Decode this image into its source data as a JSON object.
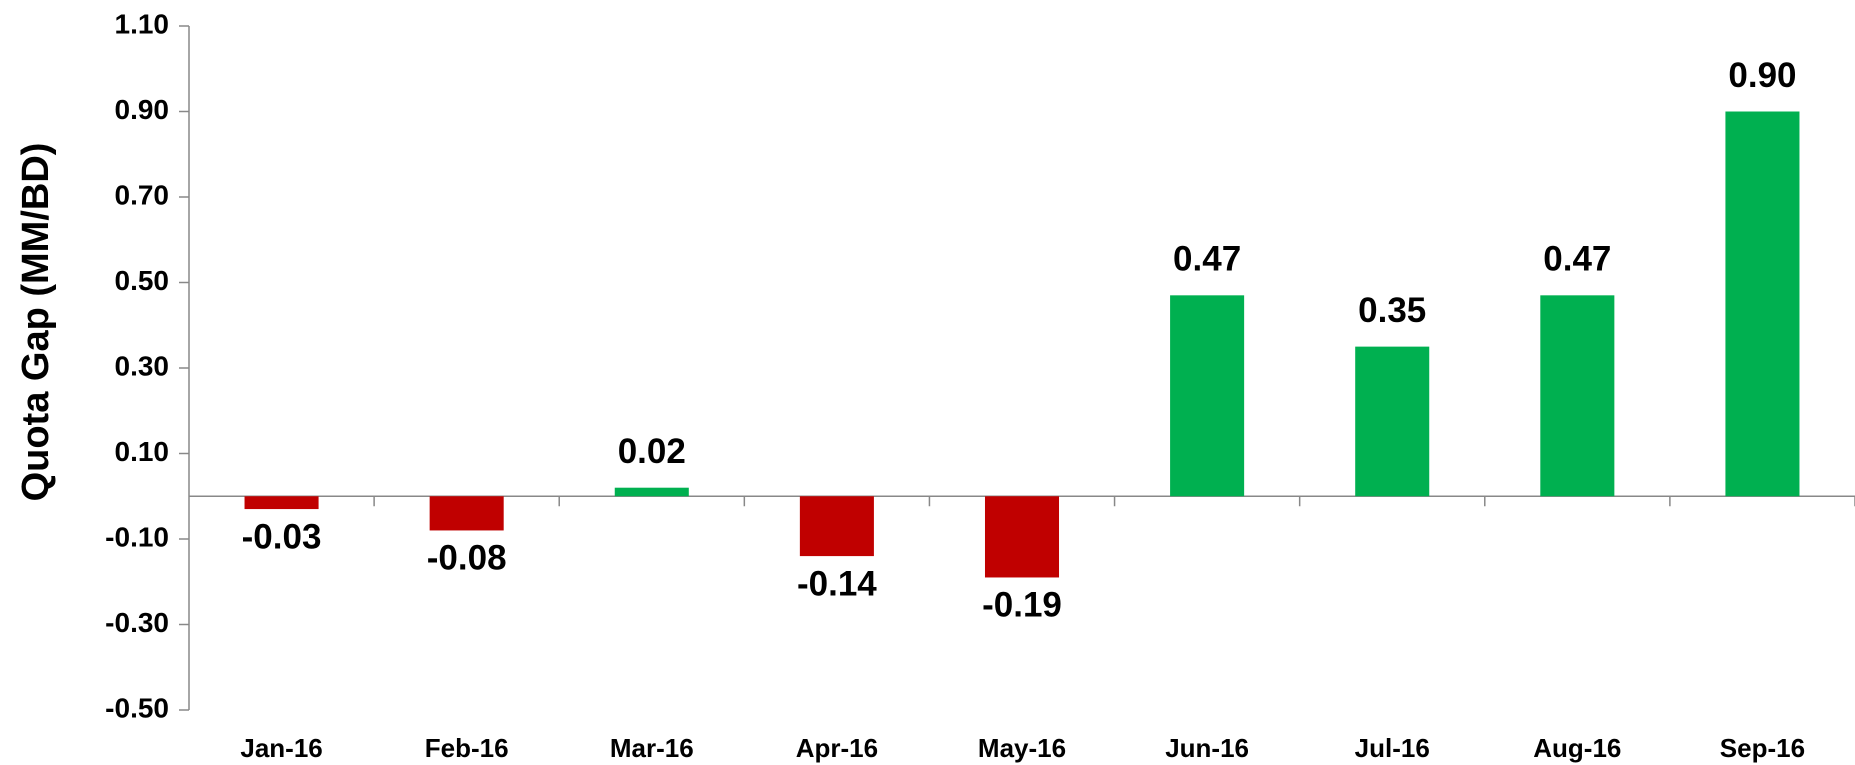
{
  "chart_data": {
    "type": "bar",
    "y_label": "Quota Gap (MM/BD)",
    "categories": [
      "Jan-16",
      "Feb-16",
      "Mar-16",
      "Apr-16",
      "May-16",
      "Jun-16",
      "Jul-16",
      "Aug-16",
      "Sep-16"
    ],
    "values": [
      -0.03,
      -0.08,
      0.02,
      -0.14,
      -0.19,
      0.47,
      0.35,
      0.47,
      0.9
    ],
    "value_labels": [
      "-0.03",
      "-0.08",
      "0.02",
      "-0.14",
      "-0.19",
      "0.47",
      "0.35",
      "0.47",
      "0.90"
    ],
    "colors": [
      "#c00000",
      "#c00000",
      "#00b050",
      "#c00000",
      "#c00000",
      "#00b050",
      "#00b050",
      "#00b050",
      "#00b050"
    ],
    "ylim": [
      -0.5,
      1.1
    ],
    "yticks": [
      {
        "value": -0.5,
        "label": "-0.50"
      },
      {
        "value": -0.3,
        "label": "-0.30"
      },
      {
        "value": -0.1,
        "label": "-0.10"
      },
      {
        "value": 0.1,
        "label": "0.10"
      },
      {
        "value": 0.3,
        "label": "0.30"
      },
      {
        "value": 0.5,
        "label": "0.50"
      },
      {
        "value": 0.7,
        "label": "0.70"
      },
      {
        "value": 0.9,
        "label": "0.90"
      },
      {
        "value": 1.1,
        "label": "1.10"
      }
    ],
    "grid": false
  }
}
